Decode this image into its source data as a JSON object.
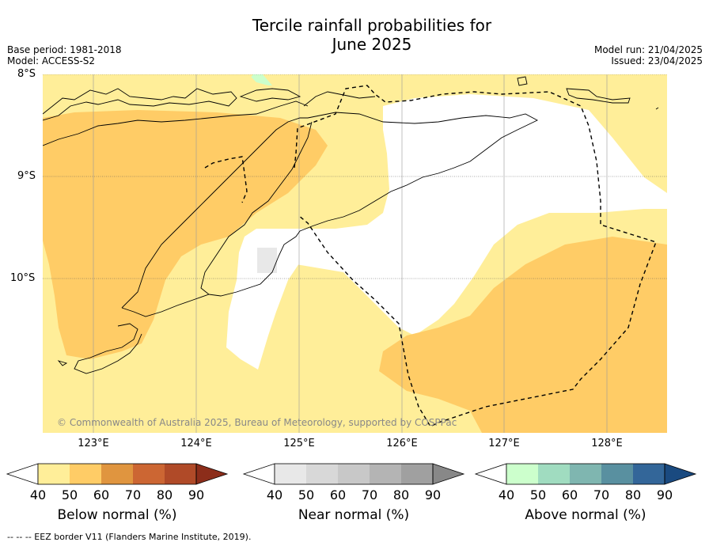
{
  "title_line1": "Tercile rainfall probabilities for",
  "title_line2": "June 2025",
  "base_period": "Base period: 1981-2018",
  "model": "Model: ACCESS-S2",
  "model_run": "Model run: 21/04/2025",
  "issued": "Issued: 23/04/2025",
  "copyright": "© Commonwealth of Australia 2025, Bureau of Meteorology, supported by COSPPac",
  "lat_labels": [
    "8°S",
    "9°S",
    "10°S"
  ],
  "lon_labels": [
    "123°E",
    "124°E",
    "125°E",
    "126°E",
    "127°E",
    "128°E"
  ],
  "colorbars": [
    {
      "label": "Below normal (%)",
      "ticks": [
        "40",
        "50",
        "60",
        "70",
        "80",
        "90"
      ],
      "colors": [
        "#ffffff",
        "#ffee99",
        "#ffcc66",
        "#e0953f",
        "#cc6633",
        "#b04a28",
        "#8c2d1a"
      ]
    },
    {
      "label": "Near normal (%)",
      "ticks": [
        "40",
        "50",
        "60",
        "70",
        "80",
        "90"
      ],
      "colors": [
        "#ffffff",
        "#e8e8e8",
        "#d8d8d8",
        "#c8c8c8",
        "#b4b4b4",
        "#a0a0a0",
        "#888888"
      ]
    },
    {
      "label": "Above normal (%)",
      "ticks": [
        "40",
        "50",
        "60",
        "70",
        "80",
        "90"
      ],
      "colors": [
        "#ffffff",
        "#ccffcc",
        "#a0dcc0",
        "#7fb6b0",
        "#5990a0",
        "#336699",
        "#1a4a80"
      ]
    }
  ],
  "footnote": "--  --  -- EEZ border V11 (Flanders Marine Institute, 2019)."
}
